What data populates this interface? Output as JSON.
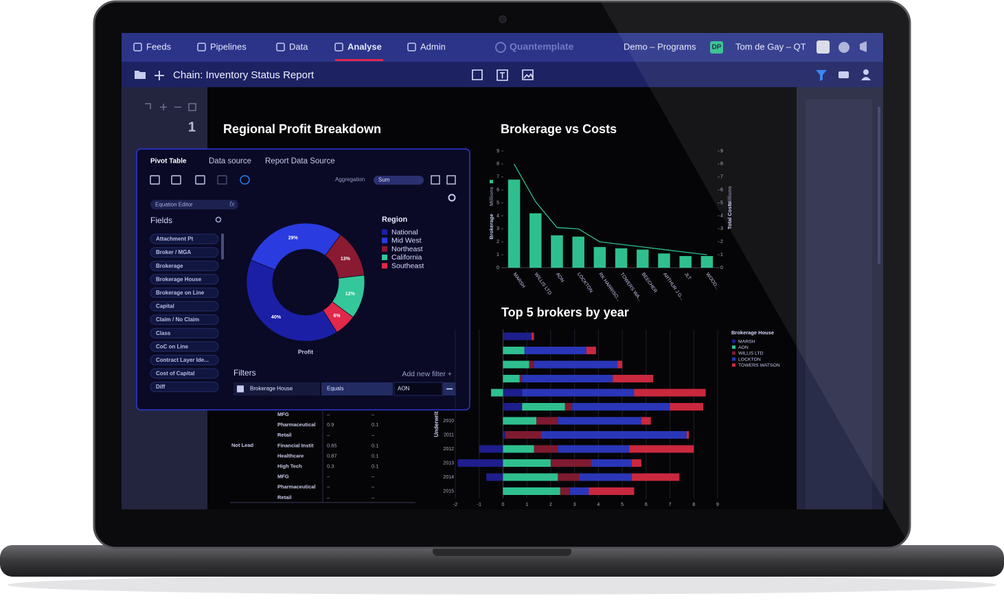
{
  "nav": {
    "items": [
      "Feeds",
      "Pipelines",
      "Data",
      "Analyse",
      "Admin"
    ],
    "brand": "Quantemplate",
    "workspace": "Demo – Programs",
    "workspace_badge": "DP",
    "user": "Tom de Gay – QT"
  },
  "toolbar": {
    "title": "Chain: Inventory Status Report"
  },
  "sidebar": {
    "page": "1"
  },
  "pivot": {
    "tabs": [
      "Pivot Table",
      "Data source",
      "Report Data Source"
    ],
    "aggregation_label": "Aggregation",
    "aggregation": "Sum",
    "equation_editor": "Equation Editor",
    "fx": "fx",
    "fields_title": "Fields",
    "fields": [
      "Attachment Pt",
      "Broker / MGA",
      "Brokerage",
      "Brokerage House",
      "Brokerage on Line",
      "Capital",
      "Claim / No Claim",
      "Class",
      "CoC on Line",
      "Contract Layer Ide...",
      "Cost of Capital",
      "Diff"
    ],
    "filters_title": "Filters",
    "add_filter": "Add new filter +",
    "filter": [
      "Brokerage House",
      "Equals",
      "AON"
    ]
  },
  "table": {
    "group": "Not Lead",
    "rows": [
      [
        "MFG",
        "–",
        "–"
      ],
      [
        "Pharmaceutical",
        "0.9",
        "0.1"
      ],
      [
        "Retail",
        "–",
        "–"
      ],
      [
        "Financial Instit",
        "0.85",
        "0.1"
      ],
      [
        "Healthcare",
        "0.87",
        "0.1"
      ],
      [
        "High Tech",
        "0.3",
        "0.1"
      ],
      [
        "MFG",
        "–",
        "–"
      ],
      [
        "Pharmaceutical",
        "–",
        "–"
      ],
      [
        "Retail",
        "–",
        "–"
      ]
    ]
  },
  "chart_data": [
    {
      "type": "pie",
      "title": "Regional Profit Breakdown",
      "legend_title": "Region",
      "xlabel": "Profit",
      "categories": [
        "National",
        "Mid West",
        "Northeast",
        "California",
        "Southeast"
      ],
      "values": [
        40,
        29,
        13,
        12,
        6
      ],
      "value_labels": [
        "40%",
        "29%",
        "13%",
        "12%",
        "6%"
      ],
      "colors": [
        "#1b1fa6",
        "#2a3be0",
        "#8a1a32",
        "#34c79a",
        "#e0284a"
      ]
    },
    {
      "type": "bar",
      "title": "Brokerage vs Costs",
      "categories": [
        "MARSH",
        "WILLIS LTD",
        "AON",
        "LOCKTON",
        "RK HARRISO...",
        "TOWERS WA...",
        "BEECHER",
        "ARTHUR J G...",
        "JLT",
        "WOOD..."
      ],
      "series": [
        {
          "name": "Brokerage",
          "color": "#2fbf8e",
          "values": [
            6.8,
            4.2,
            2.5,
            2.4,
            1.6,
            1.5,
            1.4,
            1.1,
            0.9,
            0.9
          ]
        },
        {
          "name": "Total Costs",
          "color": "#2fbf8e",
          "axis": "y2",
          "values": [
            8.0,
            5.1,
            3.1,
            3.0,
            2.0,
            1.8,
            1.6,
            1.4,
            1.2,
            1.0
          ]
        }
      ],
      "yunit": "Millions",
      "y2unit": "Millions",
      "ylim": [
        0,
        9
      ],
      "yticks": [
        0,
        1,
        2,
        3,
        4,
        5,
        6,
        7,
        8,
        9
      ],
      "y2lim": [
        0,
        9
      ],
      "y2ticks": [
        0,
        1,
        2,
        3,
        4,
        5,
        6,
        7,
        8,
        9
      ]
    },
    {
      "type": "hbar",
      "title": "Top 5 brokers by year",
      "ylabel": "Underwrit",
      "legend_title": "Brokerage House",
      "categories": [
        null,
        null,
        null,
        null,
        null,
        null,
        "2010",
        "2011",
        "2012",
        "2013",
        "2014",
        "2015"
      ],
      "series": [
        {
          "name": "MARSH",
          "color": "#1e1e8c",
          "values": [
            1.2,
            0,
            0,
            0,
            0.8,
            0.8,
            0,
            0.1,
            -1.0,
            -1.9,
            -0.7,
            0
          ]
        },
        {
          "name": "AON",
          "color": "#2fbf8e",
          "values": [
            0,
            0.9,
            1.1,
            0.7,
            -0.5,
            1.8,
            1.4,
            0,
            1.3,
            2.0,
            2.3,
            2.4
          ]
        },
        {
          "name": "WILLIS LTD",
          "color": "#7e1a30",
          "values": [
            0,
            0,
            0.2,
            0.1,
            0,
            0.3,
            0.9,
            1.5,
            1.0,
            1.7,
            0.9,
            0.4
          ]
        },
        {
          "name": "LOCKTON",
          "color": "#2a36b8",
          "values": [
            0,
            2.6,
            3.5,
            3.8,
            4.7,
            4.1,
            3.5,
            6.1,
            3.0,
            1.7,
            2.2,
            0.8
          ]
        },
        {
          "name": "TOWERS WATSON",
          "color": "#c9283e",
          "values": [
            0.1,
            0.4,
            0.2,
            1.7,
            3.0,
            1.4,
            0.4,
            0.1,
            2.7,
            0.4,
            2.0,
            1.9
          ]
        }
      ],
      "xlim": [
        -2,
        9
      ],
      "xticks": [
        -2,
        -1,
        0,
        1,
        2,
        3,
        4,
        5,
        6,
        7,
        8,
        9
      ]
    }
  ]
}
